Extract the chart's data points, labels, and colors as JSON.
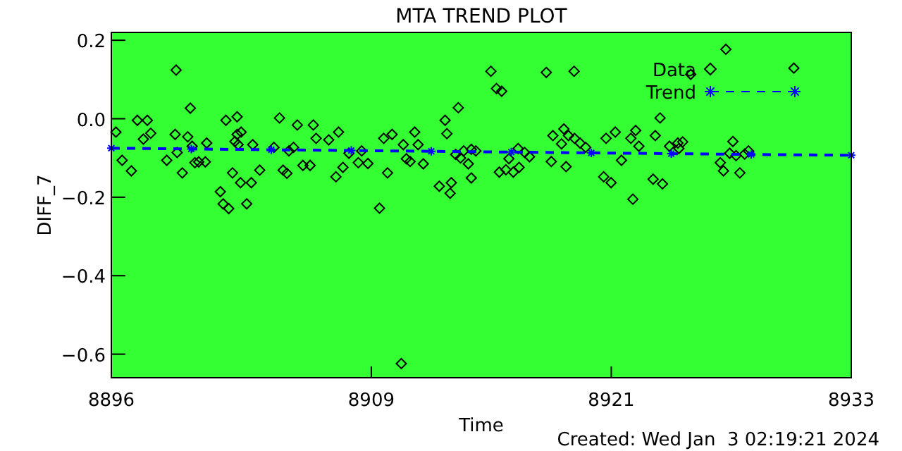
{
  "chart_data": {
    "type": "scatter",
    "title": "MTA TREND PLOT",
    "xlabel": "Time",
    "ylabel": "DIFF_7",
    "annotations": [
      "Created: Wed Jan  3 02:19:21 2024"
    ],
    "xlim": [
      8896,
      8933
    ],
    "xticks": [
      {
        "value": 8896,
        "label": "8896"
      },
      {
        "value": 8909,
        "label": "8909"
      },
      {
        "value": 8921,
        "label": "8921"
      },
      {
        "value": 8933,
        "label": "8933"
      }
    ],
    "ylim": [
      -0.66,
      0.22
    ],
    "yticks": [
      {
        "value": -0.6,
        "label": "−0.6"
      },
      {
        "value": -0.4,
        "label": "−0.4"
      },
      {
        "value": -0.2,
        "label": "−0.2"
      },
      {
        "value": 0,
        "label": "0.0"
      },
      {
        "value": 0.2,
        "label": "0.2"
      }
    ],
    "grid": false,
    "legend": "top right",
    "series": [
      {
        "name": "Data",
        "type": "scatter",
        "marker": "diamond",
        "color": "#000000",
        "x": [
          8896.23,
          8899.24,
          8899.95,
          8897.3,
          8897.8,
          8897.6,
          8897.97,
          8896.54,
          8897.0,
          8898.77,
          8899.19,
          8899.29,
          8899.55,
          8899.82,
          8900.04,
          8900.18,
          8900.37,
          8900.7,
          8900.77,
          8901.45,
          8901.59,
          8901.87,
          8901.73,
          8902.29,
          8902.06,
          8902.29,
          8902.49,
          8902.18,
          8902.34,
          8902.46,
          8903.0,
          8902.77,
          8903.07,
          8903.42,
          8904.13,
          8904.41,
          8904.59,
          8904.78,
          8905.11,
          8904.88,
          8905.3,
          8905.58,
          8905.94,
          8906.1,
          8906.24,
          8906.87,
          8907.36,
          8907.23,
          8907.58,
          8907.88,
          8908.35,
          8908.83,
          8908.52,
          8914.98,
          8915.26,
          8915.52,
          8917.75,
          8919.14,
          8913.35,
          8912.69,
          8912.78,
          8909.62,
          8910.04,
          8910.6,
          8911.17,
          8911.34,
          8909.81,
          8910.75,
          8910.94,
          8911.6,
          8909.41,
          8912.4,
          8913.0,
          8912.94,
          8913.22,
          8913.62,
          8914.0,
          8913.46,
          8913.85,
          8914.0,
          8914.23,
          8915.4,
          8915.73,
          8916.1,
          8916.39,
          8915.88,
          8916.34,
          8916.67,
          8916.91,
          8918.0,
          8918.08,
          8918.63,
          8918.86,
          8918.51,
          8919.16,
          8919.44,
          8919.72,
          8918.74,
          8920.74,
          8921.2,
          8921.51,
          8920.62,
          8920.99,
          8926.73,
          8930.13,
          8924.97,
          8923.44,
          8922.22,
          8921.98,
          8923.2,
          8922.38,
          8923.91,
          8924.33,
          8924.57,
          8924.38,
          8923.09,
          8923.56,
          8922.08,
          8927.08,
          8926.92,
          8927.24,
          8927.86,
          8927.67,
          8926.45,
          8926.61,
          8927.43,
          8910.5
        ],
        "values": [
          -0.034,
          0.124,
          0.027,
          -0.004,
          -0.004,
          -0.052,
          -0.037,
          -0.106,
          -0.133,
          -0.106,
          -0.04,
          -0.086,
          -0.138,
          -0.046,
          -0.07,
          -0.112,
          -0.11,
          -0.11,
          -0.062,
          -0.186,
          -0.217,
          -0.229,
          -0.004,
          0.005,
          -0.138,
          -0.04,
          -0.034,
          -0.058,
          -0.066,
          -0.163,
          -0.163,
          -0.217,
          -0.066,
          -0.131,
          -0.073,
          0.002,
          -0.131,
          -0.139,
          -0.073,
          -0.082,
          -0.016,
          -0.119,
          -0.119,
          -0.016,
          -0.05,
          -0.054,
          -0.034,
          -0.148,
          -0.124,
          -0.088,
          -0.112,
          -0.114,
          -0.082,
          0.121,
          0.077,
          0.07,
          0.118,
          0.121,
          0.028,
          -0.004,
          -0.038,
          -0.05,
          -0.04,
          -0.066,
          -0.034,
          -0.066,
          -0.138,
          -0.102,
          -0.109,
          -0.115,
          -0.228,
          -0.172,
          -0.163,
          -0.19,
          -0.091,
          -0.082,
          -0.078,
          -0.1,
          -0.115,
          -0.151,
          -0.082,
          -0.136,
          -0.13,
          -0.136,
          -0.124,
          -0.102,
          -0.076,
          -0.086,
          -0.097,
          -0.109,
          -0.043,
          -0.026,
          -0.043,
          -0.064,
          -0.05,
          -0.062,
          -0.073,
          -0.122,
          -0.05,
          -0.034,
          -0.106,
          -0.148,
          -0.163,
          0.177,
          0.129,
          0.113,
          0.002,
          -0.03,
          -0.05,
          -0.043,
          -0.07,
          -0.07,
          -0.062,
          -0.059,
          -0.076,
          -0.154,
          -0.166,
          -0.205,
          -0.058,
          -0.088,
          -0.094,
          -0.082,
          -0.09,
          -0.112,
          -0.133,
          -0.138,
          -0.624
        ]
      },
      {
        "name": "Trend",
        "type": "line",
        "marker": "cross",
        "line_style": "dashed",
        "color": "#0000ff",
        "x": [
          8896,
          8900,
          8904,
          8908,
          8912,
          8916,
          8920,
          8924,
          8928,
          8933
        ],
        "values": [
          -0.075,
          -0.077,
          -0.079,
          -0.081,
          -0.083,
          -0.085,
          -0.087,
          -0.089,
          -0.091,
          -0.093
        ]
      }
    ]
  }
}
